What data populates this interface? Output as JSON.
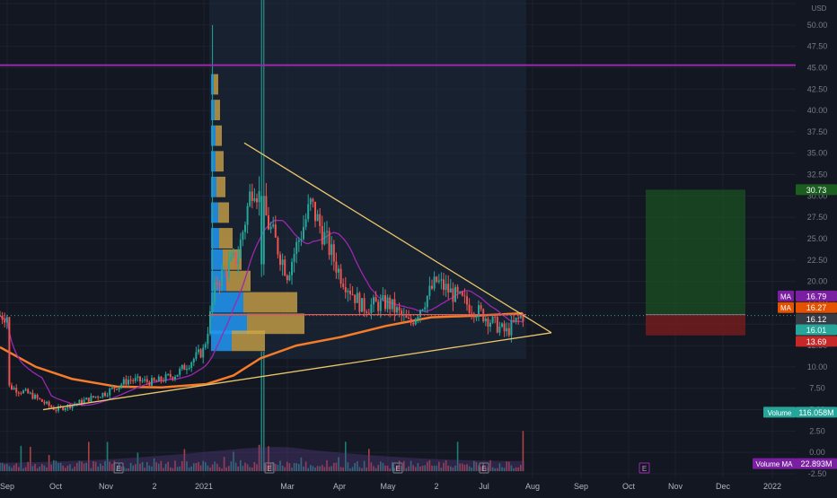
{
  "chart_data": {
    "type": "candlestick",
    "currency": "USD",
    "ylim": [
      -2.5,
      52.5
    ],
    "y_ticks": [
      "52.50",
      "50.00",
      "47.50",
      "45.00",
      "42.50",
      "40.00",
      "37.50",
      "35.00",
      "32.50",
      "30.00",
      "27.50",
      "25.00",
      "22.50",
      "20.00",
      "17.50",
      "15.00",
      "12.50",
      "10.00",
      "7.50",
      "5.00",
      "2.50",
      "0.00",
      "-2.50"
    ],
    "x_ticks": [
      "Sep",
      "Oct",
      "Nov",
      "2",
      "2021",
      "Mar",
      "Apr",
      "May",
      "2",
      "Jul",
      "Aug",
      "Sep",
      "Oct",
      "Nov",
      "Dec",
      "2022"
    ],
    "colors": {
      "background": "#131722",
      "up": "#26a69a",
      "down": "#ef5350",
      "ma_long": "#f57c2a",
      "ma_short": "#9c27b0",
      "horizontal_line": "#9c27b0",
      "trendline": "#e9c46a",
      "support_line": "#ef5350",
      "target_zone": "#1b5e20",
      "stop_zone": "#7f1d1d"
    },
    "price_series": [
      {
        "date": "2020-09",
        "price": 7.8
      },
      {
        "date": "2020-09-15",
        "price": 6.8
      },
      {
        "date": "2020-10",
        "price": 5.0
      },
      {
        "date": "2020-10-15",
        "price": 5.8
      },
      {
        "date": "2020-11",
        "price": 7.0
      },
      {
        "date": "2020-11-15",
        "price": 8.5
      },
      {
        "date": "2020-12",
        "price": 8.2
      },
      {
        "date": "2020-12-15",
        "price": 9.2
      },
      {
        "date": "2021-01",
        "price": 12.0
      },
      {
        "date": "2021-01-10",
        "price": 20.0
      },
      {
        "date": "2021-01-25",
        "price": 23.0
      },
      {
        "date": "2021-02-05",
        "price": 32.0
      },
      {
        "date": "2021-02-15",
        "price": 27.0
      },
      {
        "date": "2021-03-01",
        "price": 21.0
      },
      {
        "date": "2021-03-15",
        "price": 29.0
      },
      {
        "date": "2021-04-01",
        "price": 21.0
      },
      {
        "date": "2021-04-15",
        "price": 17.0
      },
      {
        "date": "2021-05-01",
        "price": 17.5
      },
      {
        "date": "2021-05-15",
        "price": 15.0
      },
      {
        "date": "2021-06-01",
        "price": 20.0
      },
      {
        "date": "2021-06-15",
        "price": 18.0
      },
      {
        "date": "2021-07-01",
        "price": 16.0
      },
      {
        "date": "2021-07-15",
        "price": 14.0
      },
      {
        "date": "2021-07-25",
        "price": 16.0
      }
    ],
    "series": [
      {
        "name": "MA",
        "value": "16.79"
      },
      {
        "name": "MA",
        "value": "16.27"
      }
    ],
    "levels": {
      "horizontal_line": 45.3,
      "target": "30.73",
      "entry": "16.12",
      "last_price": "16.01",
      "stop": "13.69"
    },
    "volume": {
      "label": "Volume",
      "value": "116.058M"
    },
    "volume_ma": {
      "label": "Volume MA",
      "value": "22.893M"
    },
    "event_markers": [
      "E",
      "E",
      "E",
      "E",
      "E",
      "E",
      "E"
    ]
  }
}
